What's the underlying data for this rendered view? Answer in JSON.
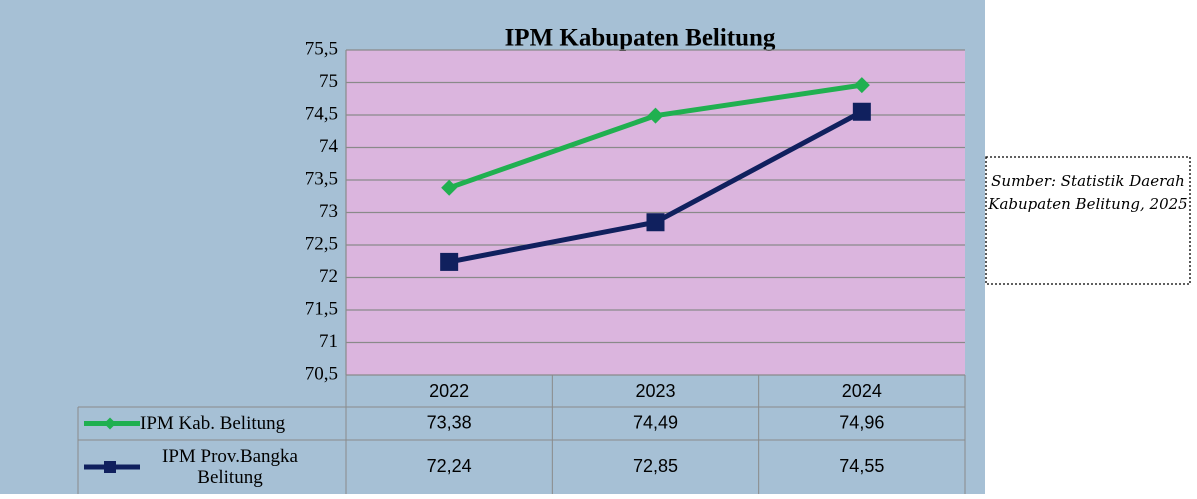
{
  "chart_data": {
    "type": "line",
    "title": "IPM Kabupaten Belitung",
    "categories": [
      "2022",
      "2023",
      "2024"
    ],
    "series": [
      {
        "name": "IPM Kab. Belitung",
        "color": "#20b050",
        "marker": "diamond",
        "values": [
          73.38,
          74.49,
          74.96
        ],
        "value_labels": [
          "73,38",
          "74,49",
          "74,96"
        ]
      },
      {
        "name": "IPM Prov.Bangka Belitung",
        "color": "#10205e",
        "marker": "square",
        "values": [
          72.24,
          72.85,
          74.55
        ],
        "value_labels": [
          "72,24",
          "72,85",
          "74,55"
        ]
      }
    ],
    "ylim": [
      70.5,
      75.5
    ],
    "yticks": [
      {
        "value": 70.5,
        "label": "70,5"
      },
      71,
      {
        "value": 71.5,
        "label": "71,5"
      },
      72,
      {
        "value": 72.5,
        "label": "72,5"
      },
      73,
      {
        "value": 73.5,
        "label": "73,5"
      },
      74,
      {
        "value": 74.5,
        "label": "74,5"
      },
      75,
      {
        "value": 75.5,
        "label": "75,5"
      }
    ],
    "grid": true,
    "annotation": "Sumber: Statistik Daerah Kabupaten Belitung, 2025"
  }
}
